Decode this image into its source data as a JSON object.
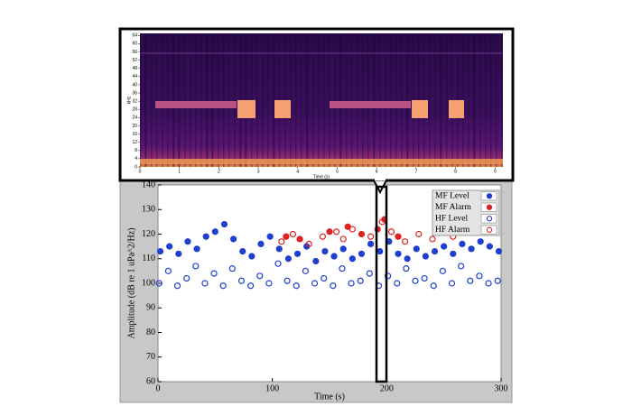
{
  "chart_data": [
    {
      "type": "spectrogram",
      "xlabel": "Time (s)",
      "ylabel": "kHz",
      "xlim": [
        0,
        9.2
      ],
      "ylim": [
        0,
        65
      ],
      "xticks": [
        0,
        1,
        2,
        3,
        4,
        5,
        6,
        7,
        8,
        9
      ],
      "yticks": [
        0,
        4,
        8,
        12,
        16,
        20,
        24,
        28,
        32,
        36,
        40,
        44,
        48,
        52,
        56,
        60,
        64
      ]
    },
    {
      "type": "scatter",
      "xlabel": "Time (s)",
      "ylabel": "Amplitude (dB re 1 uPa^2/Hz)",
      "xlim": [
        0,
        300
      ],
      "ylim": [
        60,
        140
      ],
      "xticks": [
        0,
        100,
        200,
        300
      ],
      "yticks": [
        60,
        70,
        80,
        90,
        100,
        110,
        120,
        130,
        140
      ],
      "legend": "upper right",
      "series": [
        {
          "name": "MF Level",
          "color": "#1f3fd0",
          "marker": "filled",
          "x": [
            2,
            10,
            18,
            26,
            34,
            42,
            50,
            58,
            66,
            74,
            82,
            90,
            98,
            106,
            114,
            122,
            130,
            138,
            146,
            154,
            162,
            170,
            178,
            186,
            194,
            202,
            210,
            218,
            226,
            234,
            242,
            250,
            258,
            266,
            274,
            282,
            290,
            298
          ],
          "values": [
            113,
            115,
            112,
            117,
            114,
            119,
            121,
            124,
            118,
            113,
            111,
            116,
            119,
            114,
            110,
            112,
            115,
            109,
            113,
            111,
            114,
            110,
            112,
            116,
            113,
            117,
            112,
            110,
            114,
            111,
            113,
            115,
            112,
            116,
            114,
            117,
            115,
            113
          ]
        },
        {
          "name": "MF Alarm",
          "color": "#e02020",
          "marker": "filled",
          "x": [
            112,
            124,
            150,
            166,
            178,
            192,
            198,
            210
          ],
          "values": [
            119,
            118,
            121,
            123,
            120,
            122,
            126,
            119
          ]
        },
        {
          "name": "HF Level",
          "color": "#1f3fd0",
          "marker": "open",
          "x": [
            1,
            9,
            17,
            25,
            33,
            41,
            49,
            57,
            65,
            73,
            81,
            89,
            97,
            105,
            113,
            121,
            129,
            137,
            145,
            153,
            161,
            169,
            177,
            185,
            193,
            201,
            209,
            217,
            225,
            233,
            241,
            249,
            257,
            265,
            273,
            281,
            289,
            297
          ],
          "values": [
            100,
            105,
            99,
            102,
            107,
            100,
            104,
            99,
            106,
            101,
            99,
            103,
            100,
            108,
            101,
            99,
            105,
            100,
            102,
            99,
            106,
            100,
            101,
            104,
            99,
            103,
            100,
            106,
            101,
            102,
            99,
            105,
            100,
            107,
            101,
            103,
            100,
            101
          ]
        },
        {
          "name": "HF Alarm",
          "color": "#e02020",
          "marker": "open",
          "x": [
            108,
            118,
            132,
            144,
            156,
            162,
            170,
            186,
            196,
            204,
            216,
            228,
            240,
            258
          ],
          "values": [
            117,
            120,
            116,
            119,
            121,
            118,
            122,
            119,
            125,
            121,
            117,
            120,
            118,
            119
          ]
        }
      ]
    }
  ]
}
